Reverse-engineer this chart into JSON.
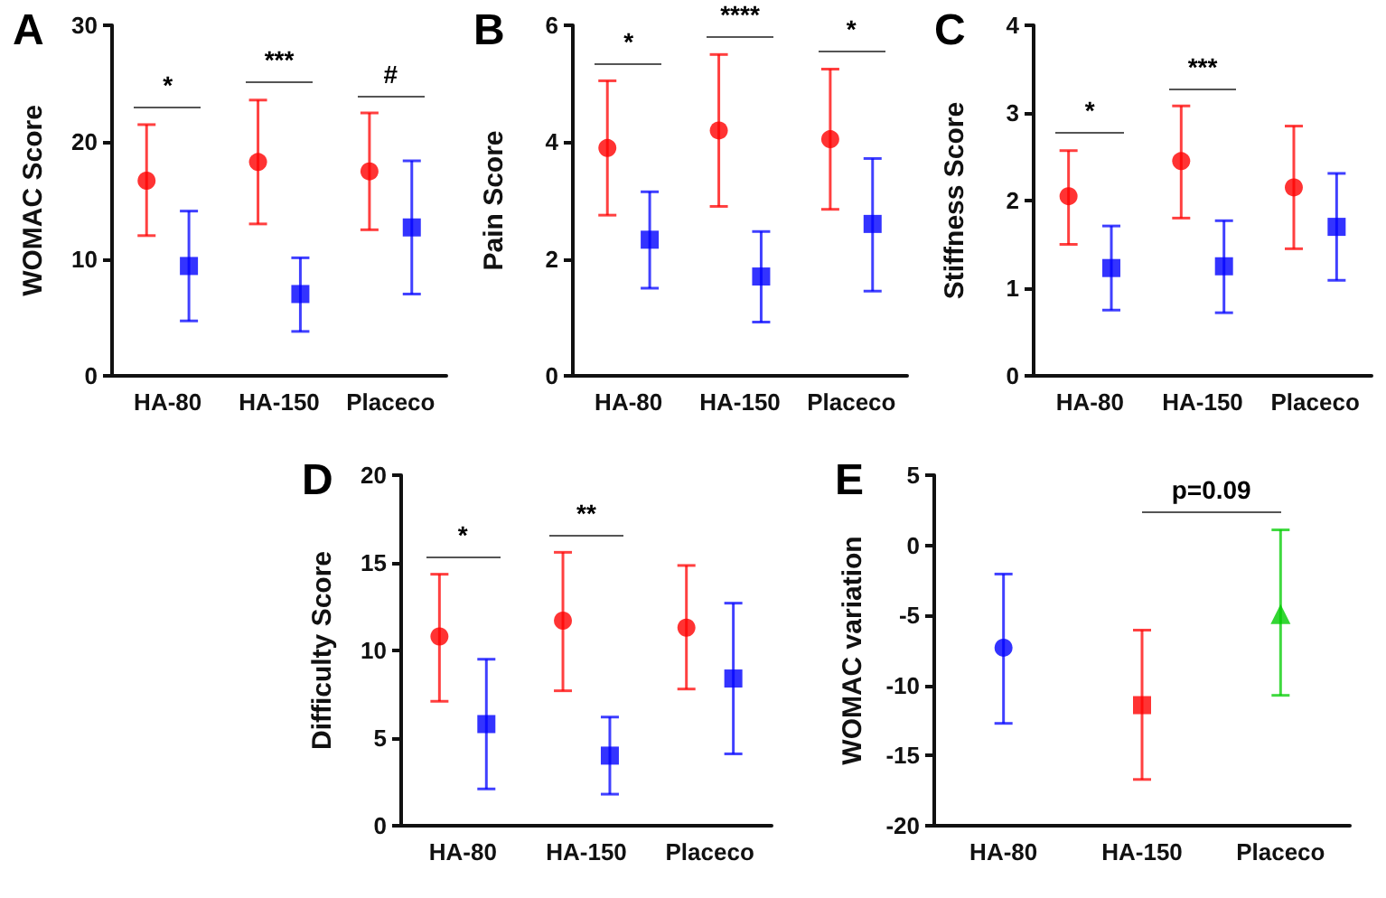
{
  "chart_data": [
    {
      "type": "scatter",
      "title": "A",
      "ylabel": "WOMAC Score",
      "categories": [
        "HA-80",
        "HA-150",
        "Placeco"
      ],
      "ylim": [
        0,
        30
      ],
      "yticks": [
        0,
        10,
        20,
        30
      ],
      "grid": false,
      "series": [
        {
          "color": "#ff0000",
          "marker": "circle",
          "values": [
            16.7,
            18.3,
            17.5
          ],
          "errors": [
            [
              12,
              21.5
            ],
            [
              13,
              23.6
            ],
            [
              12.5,
              22.5
            ]
          ]
        },
        {
          "color": "#0000ff",
          "marker": "square",
          "values": [
            9.4,
            7.0,
            12.7
          ],
          "errors": [
            [
              4.7,
              14.1
            ],
            [
              3.8,
              10.1
            ],
            [
              7,
              18.4
            ]
          ]
        }
      ],
      "annotations": [
        "*",
        "***",
        "#"
      ]
    },
    {
      "type": "scatter",
      "title": "B",
      "ylabel": "Pain Score",
      "categories": [
        "HA-80",
        "HA-150",
        "Placeco"
      ],
      "ylim": [
        0,
        6
      ],
      "yticks": [
        0,
        2,
        4,
        6
      ],
      "grid": false,
      "series": [
        {
          "color": "#ff0000",
          "marker": "circle",
          "values": [
            3.9,
            4.2,
            4.05
          ],
          "errors": [
            [
              2.75,
              5.05
            ],
            [
              2.9,
              5.5
            ],
            [
              2.85,
              5.25
            ]
          ]
        },
        {
          "color": "#0000ff",
          "marker": "square",
          "values": [
            2.33,
            1.7,
            2.6
          ],
          "errors": [
            [
              1.5,
              3.15
            ],
            [
              0.92,
              2.47
            ],
            [
              1.45,
              3.72
            ]
          ]
        }
      ],
      "annotations": [
        "*",
        "****",
        "*"
      ]
    },
    {
      "type": "scatter",
      "title": "C",
      "ylabel": "Stiffness Score",
      "categories": [
        "HA-80",
        "HA-150",
        "Placeco"
      ],
      "ylim": [
        0,
        4
      ],
      "yticks": [
        0,
        1,
        2,
        3,
        4
      ],
      "grid": false,
      "series": [
        {
          "color": "#ff0000",
          "marker": "circle",
          "values": [
            2.05,
            2.45,
            2.15
          ],
          "errors": [
            [
              1.5,
              2.57
            ],
            [
              1.8,
              3.08
            ],
            [
              1.45,
              2.85
            ]
          ]
        },
        {
          "color": "#0000ff",
          "marker": "square",
          "values": [
            1.23,
            1.25,
            1.7
          ],
          "errors": [
            [
              0.75,
              1.71
            ],
            [
              0.72,
              1.77
            ],
            [
              1.09,
              2.31
            ]
          ]
        }
      ],
      "annotations": [
        "*",
        "***"
      ]
    },
    {
      "type": "scatter",
      "title": "D",
      "ylabel": "Difficulty Score",
      "categories": [
        "HA-80",
        "HA-150",
        "Placeco"
      ],
      "ylim": [
        0,
        20
      ],
      "yticks": [
        0,
        5,
        10,
        15,
        20
      ],
      "grid": false,
      "series": [
        {
          "color": "#ff0000",
          "marker": "circle",
          "values": [
            10.8,
            11.7,
            11.3
          ],
          "errors": [
            [
              7.1,
              14.35
            ],
            [
              7.7,
              15.6
            ],
            [
              7.8,
              14.85
            ]
          ]
        },
        {
          "color": "#0000ff",
          "marker": "square",
          "values": [
            5.8,
            4.0,
            8.4
          ],
          "errors": [
            [
              2.1,
              9.5
            ],
            [
              1.8,
              6.2
            ],
            [
              4.1,
              12.7
            ]
          ]
        }
      ],
      "annotations": [
        "*",
        "**"
      ]
    },
    {
      "type": "scatter",
      "title": "E",
      "ylabel": "WOMAC variation",
      "categories": [
        "HA-80",
        "HA-150",
        "Placeco"
      ],
      "ylim": [
        -20,
        5
      ],
      "yticks": [
        -20,
        -15,
        -10,
        -5,
        0,
        5
      ],
      "grid": false,
      "series": [
        {
          "color": "#0000ff",
          "marker": "circle",
          "values": [
            -7.3,
            null,
            null
          ],
          "errors": [
            [
              -12.7,
              -2.05
            ],
            null,
            null
          ]
        },
        {
          "color": "#ff0000",
          "marker": "square",
          "values": [
            null,
            -11.4,
            null
          ],
          "errors": [
            null,
            [
              -16.7,
              -6.05
            ],
            null
          ]
        },
        {
          "color": "#00cc00",
          "marker": "triangle",
          "values": [
            null,
            null,
            -4.9
          ],
          "errors": [
            null,
            null,
            [
              -10.7,
              1.1
            ]
          ]
        }
      ],
      "annotations": [
        "p=0.09"
      ]
    }
  ]
}
